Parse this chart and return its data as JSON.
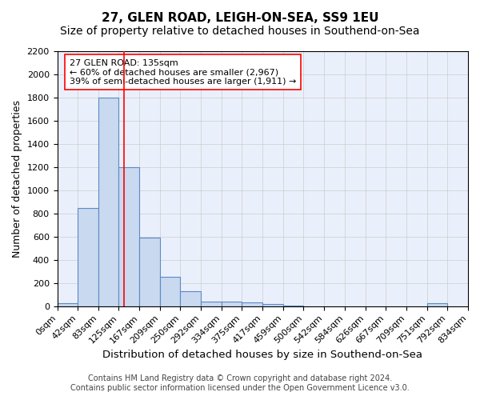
{
  "title_line1": "27, GLEN ROAD, LEIGH-ON-SEA, SS9 1EU",
  "title_line2": "Size of property relative to detached houses in Southend-on-Sea",
  "xlabel": "Distribution of detached houses by size in Southend-on-Sea",
  "ylabel": "Number of detached properties",
  "bin_labels": [
    "0sqm",
    "42sqm",
    "83sqm",
    "125sqm",
    "167sqm",
    "209sqm",
    "250sqm",
    "292sqm",
    "334sqm",
    "375sqm",
    "417sqm",
    "459sqm",
    "500sqm",
    "542sqm",
    "584sqm",
    "626sqm",
    "667sqm",
    "709sqm",
    "751sqm",
    "792sqm",
    "834sqm"
  ],
  "bin_edges": [
    0,
    42,
    83,
    125,
    167,
    209,
    250,
    292,
    334,
    375,
    417,
    459,
    500,
    542,
    584,
    626,
    667,
    709,
    751,
    792,
    834
  ],
  "bar_heights": [
    25,
    845,
    1800,
    1200,
    590,
    255,
    130,
    42,
    40,
    30,
    18,
    5,
    0,
    0,
    0,
    0,
    0,
    0,
    25,
    0
  ],
  "bar_color": "#c9d9ef",
  "bar_edge_color": "#5a8ac6",
  "grid_color": "#cccccc",
  "bg_color": "#eaf0fb",
  "red_line_x": 135,
  "annotation_box_text": "27 GLEN ROAD: 135sqm\n← 60% of detached houses are smaller (2,967)\n39% of semi-detached houses are larger (1,911) →",
  "ylim": [
    0,
    2200
  ],
  "yticks": [
    0,
    200,
    400,
    600,
    800,
    1000,
    1200,
    1400,
    1600,
    1800,
    2000,
    2200
  ],
  "footer_line1": "Contains HM Land Registry data © Crown copyright and database right 2024.",
  "footer_line2": "Contains public sector information licensed under the Open Government Licence v3.0.",
  "title1_fontsize": 11,
  "title2_fontsize": 10,
  "xlabel_fontsize": 9.5,
  "ylabel_fontsize": 9,
  "tick_fontsize": 8,
  "annotation_fontsize": 8,
  "footer_fontsize": 7
}
